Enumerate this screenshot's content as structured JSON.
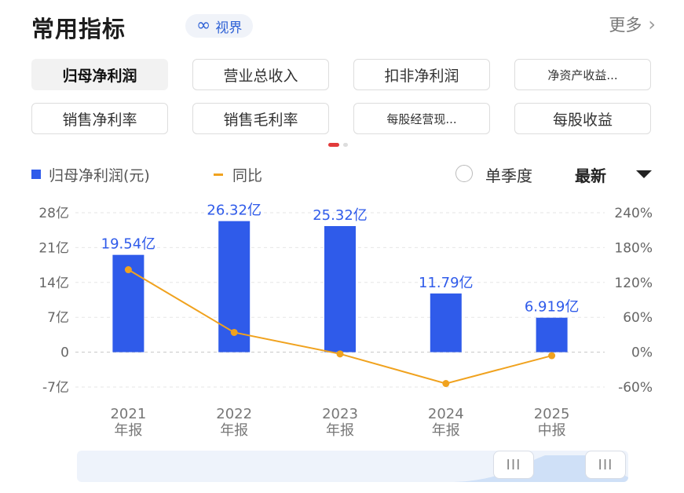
{
  "header": {
    "title": "常用指标",
    "badge_label": "视界",
    "badge_icon": "infinity-icon",
    "more_label": "更多"
  },
  "tabs": [
    {
      "label": "归母净利润",
      "active": true
    },
    {
      "label": "营业总收入",
      "active": false
    },
    {
      "label": "扣非净利润",
      "active": false
    },
    {
      "label": "净资产收益...",
      "active": false
    },
    {
      "label": "销售净利率",
      "active": false
    },
    {
      "label": "销售毛利率",
      "active": false
    },
    {
      "label": "每股经营现...",
      "active": false
    },
    {
      "label": "每股收益",
      "active": false
    }
  ],
  "pager": {
    "pages": 2,
    "current": 1
  },
  "controls": {
    "single_quarter_label": "单季度",
    "latest_label": "最新"
  },
  "colors": {
    "bar": "#2f5bea",
    "line": "#f0a21e",
    "label": "#2f5bea",
    "active_dot": "#e23a3a"
  },
  "chart_data": {
    "type": "bar",
    "legend": {
      "bar_series": "归母净利润(元)",
      "line_series": "同比"
    },
    "categories": [
      {
        "year": "2021",
        "period": "年报"
      },
      {
        "year": "2022",
        "period": "年报"
      },
      {
        "year": "2023",
        "period": "年报"
      },
      {
        "year": "2024",
        "period": "年报"
      },
      {
        "year": "2025",
        "period": "中报"
      }
    ],
    "series": [
      {
        "name": "归母净利润(元)",
        "type": "bar",
        "values": [
          19.54,
          26.32,
          25.32,
          11.79,
          6.919
        ],
        "labels": [
          "19.54亿",
          "26.32亿",
          "25.32亿",
          "11.79亿",
          "6.919亿"
        ]
      },
      {
        "name": "同比",
        "type": "line",
        "values": [
          142,
          34,
          -3,
          -54,
          -6
        ],
        "axis": "right"
      }
    ],
    "left_axis": {
      "ticks": [
        28,
        21,
        14,
        7,
        0,
        -7
      ],
      "tick_labels": [
        "28亿",
        "21亿",
        "14亿",
        "7亿",
        "0",
        "-7亿"
      ],
      "ylim": [
        -7,
        28
      ]
    },
    "right_axis": {
      "ticks": [
        240,
        180,
        120,
        60,
        0,
        -60
      ],
      "tick_labels": [
        "240%",
        "180%",
        "120%",
        "60%",
        "0%",
        "-60%"
      ],
      "ylim": [
        -60,
        240
      ]
    },
    "grid": "dashed horizontal"
  }
}
